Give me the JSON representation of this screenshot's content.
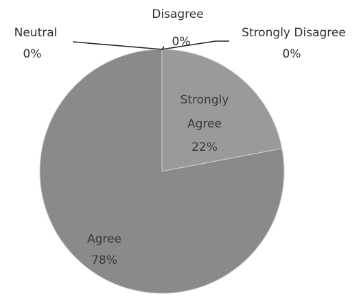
{
  "chart_data": {
    "type": "pie",
    "title": "",
    "categories": [
      "Strongly Agree",
      "Agree",
      "Neutral",
      "Disagree",
      "Strongly Disagree"
    ],
    "values": [
      22,
      78,
      0,
      0,
      0
    ],
    "labels": [
      {
        "name": "Strongly",
        "name2": "Agree",
        "pct": "22%"
      },
      {
        "name": "Agree",
        "pct": "78%"
      },
      {
        "name": "Neutral",
        "pct": "0%"
      },
      {
        "name": "Disagree",
        "pct": "0%"
      },
      {
        "name": "Strongly Disagree",
        "pct": "0%"
      }
    ],
    "colors": [
      "#9a9a9a",
      "#8a8a8a"
    ],
    "slice_border": "#d0d0d0",
    "leader_color": "#222222",
    "legend": "none"
  }
}
